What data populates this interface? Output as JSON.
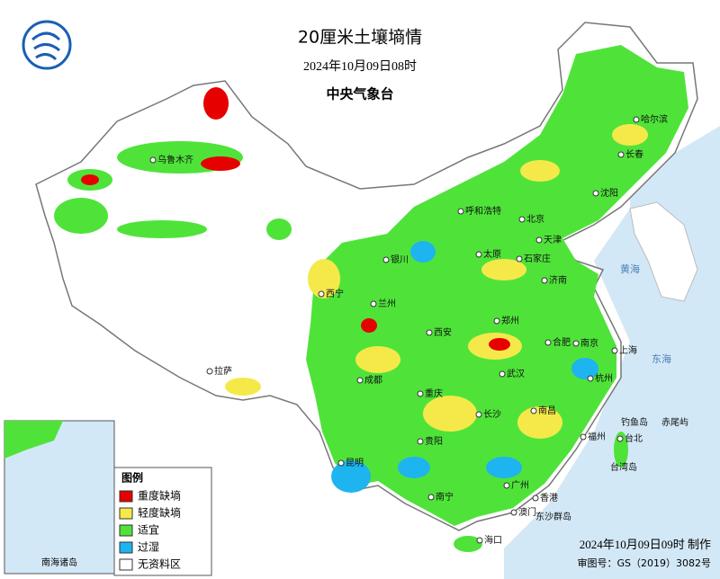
{
  "header": {
    "title": "20厘米土壤墒情",
    "date": "2024年10月09日08时",
    "issuer": "中央气象台"
  },
  "legend": {
    "title": "图例",
    "items": [
      {
        "label": "重度缺墒",
        "color": "#e60000"
      },
      {
        "label": "轻度缺墒",
        "color": "#f5e94a"
      },
      {
        "label": "适宜",
        "color": "#4fe33a"
      },
      {
        "label": "过湿",
        "color": "#1eb4f0"
      },
      {
        "label": "无资料区",
        "color": "#ffffff"
      }
    ]
  },
  "cities": [
    "乌鲁木齐",
    "哈尔滨",
    "长春",
    "沈阳",
    "呼和浩特",
    "北京",
    "天津",
    "太原",
    "石家庄",
    "济南",
    "银川",
    "西宁",
    "兰州",
    "西安",
    "郑州",
    "合肥",
    "南京",
    "上海",
    "武汉",
    "杭州",
    "成都",
    "重庆",
    "拉萨",
    "长沙",
    "南昌",
    "福州",
    "贵阳",
    "昆明",
    "南宁",
    "广州",
    "香港",
    "澳门",
    "台北",
    "海口"
  ],
  "places": [
    "黄海",
    "东海",
    "钓鱼岛",
    "赤尾屿",
    "台湾岛",
    "东沙群岛"
  ],
  "inset": {
    "label": "南海诸岛"
  },
  "footer": {
    "made": "2024年10月09日09时 制作",
    "approval": "审图号：GS（2019）3082号"
  }
}
